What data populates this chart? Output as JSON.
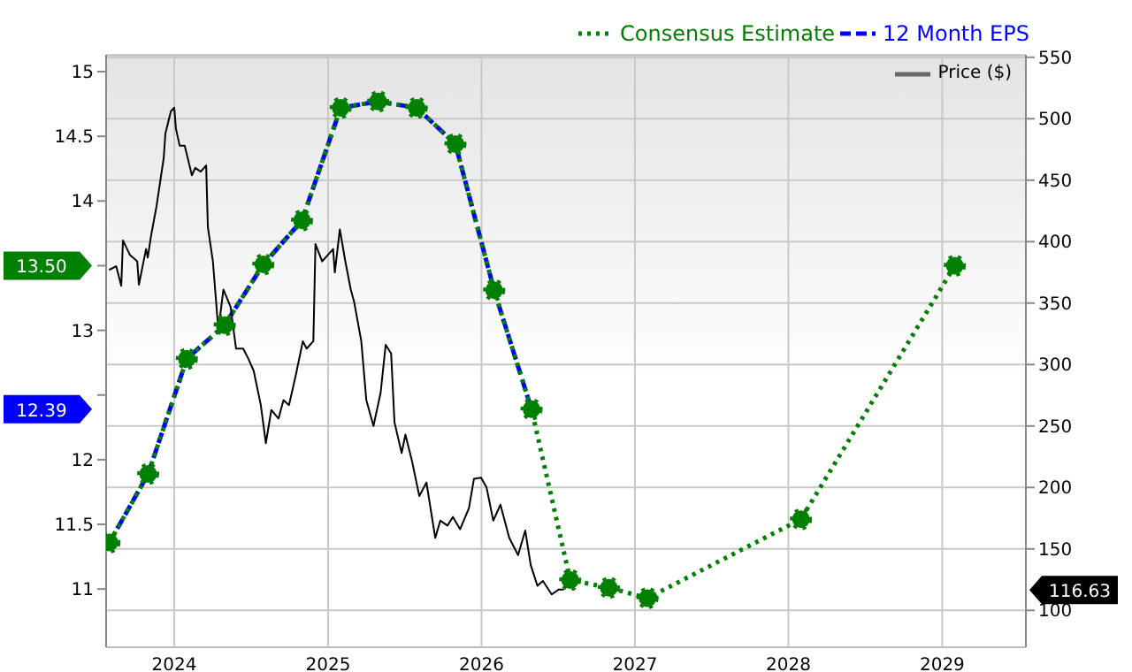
{
  "chart_data": {
    "type": "line",
    "xlim": [
      "2023-07-23",
      "2029-07-19"
    ],
    "xticks": [
      {
        "value": "2024-01-01",
        "label": "2024"
      },
      {
        "value": "2025-01-01",
        "label": "2025"
      },
      {
        "value": "2026-01-01",
        "label": "2026"
      },
      {
        "value": "2027-01-01",
        "label": "2027"
      },
      {
        "value": "2028-01-01",
        "label": "2028"
      },
      {
        "value": "2029-01-01",
        "label": "2029"
      }
    ],
    "ylim": [
      10.55,
      15.13
    ],
    "yticks": [
      11,
      11.5,
      12,
      {
        "value": 12.5,
        "label": null
      },
      13,
      {
        "value": 13.5,
        "label": null
      },
      14,
      14.5,
      15
    ],
    "y2lim": [
      70,
      552
    ],
    "y2ticks": [
      100,
      150,
      200,
      250,
      300,
      350,
      400,
      450,
      500,
      550
    ],
    "grid": true,
    "legend": "top right",
    "annotations": [
      "13.50",
      "12.39",
      "116.63"
    ],
    "series": [
      {
        "name": "Price ($)",
        "color": "#000000",
        "axis": "y2",
        "line_style": "solid",
        "marker": "none",
        "x": [
          "2023-07-30",
          "2023-08-16",
          "2023-08-28",
          "2023-09-01",
          "2023-09-18",
          "2023-10-05",
          "2023-10-09",
          "2023-10-26",
          "2023-10-30",
          "2023-11-07",
          "2023-11-20",
          "2023-12-07",
          "2023-12-11",
          "2023-12-24",
          "2024-01-01",
          "2024-01-05",
          "2024-01-14",
          "2024-01-26",
          "2024-02-12",
          "2024-02-20",
          "2024-03-04",
          "2024-03-17",
          "2024-03-21",
          "2024-04-02",
          "2024-04-15",
          "2024-04-27",
          "2024-05-14",
          "2024-05-27",
          "2024-06-13",
          "2024-06-25",
          "2024-07-08",
          "2024-07-25",
          "2024-08-06",
          "2024-08-19",
          "2024-09-05",
          "2024-09-17",
          "2024-09-30",
          "2024-10-16",
          "2024-11-02",
          "2024-11-11",
          "2024-11-27",
          "2024-12-02",
          "2024-12-18",
          "2024-12-31",
          "2025-01-13",
          "2025-01-17",
          "2025-01-29",
          "2025-02-11",
          "2025-02-24",
          "2025-03-04",
          "2025-03-21",
          "2025-04-02",
          "2025-04-19",
          "2025-05-06",
          "2025-05-18",
          "2025-05-31",
          "2025-06-08",
          "2025-06-25",
          "2025-07-04",
          "2025-07-20",
          "2025-08-06",
          "2025-08-23",
          "2025-09-13",
          "2025-09-25",
          "2025-10-12",
          "2025-10-25",
          "2025-11-11",
          "2025-12-02",
          "2025-12-14",
          "2025-12-31",
          "2026-01-13",
          "2026-01-29",
          "2026-02-15",
          "2026-03-08",
          "2026-03-29",
          "2026-04-15",
          "2026-04-28",
          "2026-05-14",
          "2026-05-27",
          "2026-06-17",
          "2026-07-04",
          "2026-07-16"
        ],
        "values": [
          377,
          380,
          364,
          401,
          389,
          384,
          365,
          394,
          387,
          405,
          429,
          468,
          488,
          506,
          509,
          492,
          478,
          478,
          454,
          460,
          457,
          462,
          412,
          384,
          328,
          361,
          347,
          313,
          313,
          305,
          295,
          267,
          236,
          263,
          256,
          271,
          267,
          291,
          319,
          313,
          319,
          398,
          384,
          389,
          394,
          375,
          410,
          384,
          361,
          351,
          319,
          271,
          250,
          277,
          316,
          309,
          253,
          228,
          243,
          221,
          193,
          204,
          159,
          173,
          169,
          176,
          166,
          183,
          207,
          208,
          200,
          173,
          186,
          159,
          145,
          165,
          137,
          120,
          124,
          113,
          117,
          117
        ]
      },
      {
        "name": "Consensus Estimate",
        "color": "#008000",
        "line_style": "dotted",
        "marker": "circle",
        "x": [
          "2023-07-31",
          "2023-10-31",
          "2024-01-31",
          "2024-04-30",
          "2024-07-31",
          "2024-10-31",
          "2025-01-31",
          "2025-04-30",
          "2025-07-31",
          "2025-10-31",
          "2026-01-31",
          "2026-04-30",
          "2026-07-31",
          "2026-10-31",
          "2027-01-31",
          "2028-01-31",
          "2029-01-31"
        ],
        "values": [
          11.36,
          11.89,
          12.78,
          13.04,
          13.51,
          13.85,
          14.72,
          14.77,
          14.72,
          14.44,
          13.31,
          12.39,
          11.07,
          11.01,
          10.93,
          11.54,
          13.5
        ]
      },
      {
        "name": "12 Month EPS",
        "color": "#0000ff",
        "line_style": "dashed",
        "marker": "none",
        "x": [
          "2023-07-31",
          "2023-10-31",
          "2024-01-31",
          "2024-04-30",
          "2024-07-31",
          "2024-10-31",
          "2025-01-31",
          "2025-04-30",
          "2025-07-31",
          "2025-10-31",
          "2026-01-31",
          "2026-04-30"
        ],
        "values": [
          11.36,
          11.89,
          12.78,
          13.04,
          13.51,
          13.85,
          14.72,
          14.77,
          14.72,
          14.44,
          13.31,
          12.39
        ]
      }
    ]
  }
}
